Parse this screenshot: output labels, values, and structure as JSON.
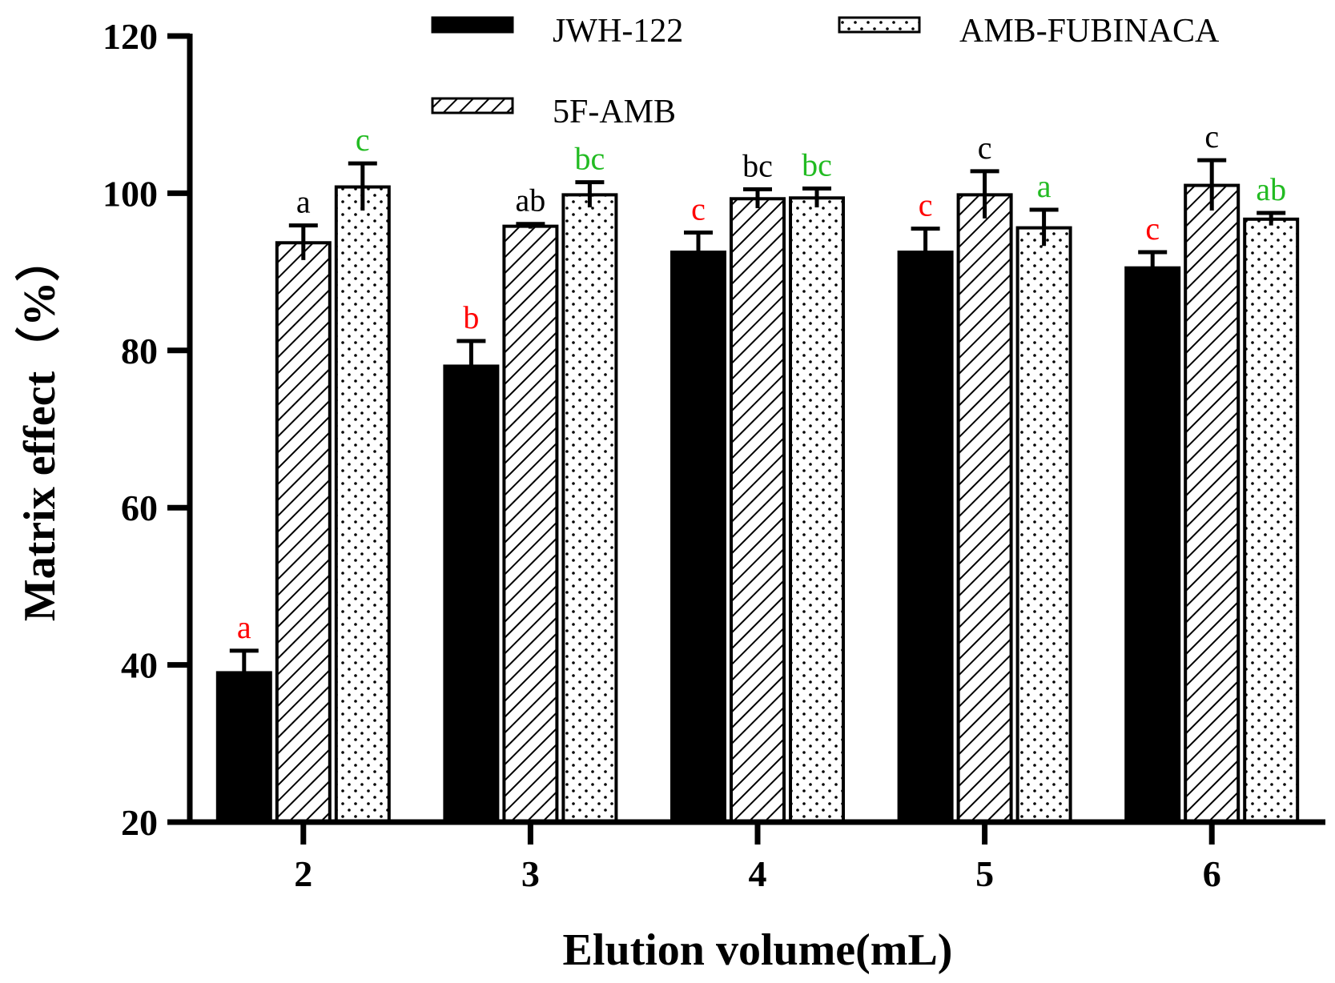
{
  "chart_data": {
    "type": "bar",
    "title": "",
    "xlabel": "Elution volume(mL)",
    "ylabel": "Matrix effect（%）",
    "categories": [
      "2",
      "3",
      "4",
      "5",
      "6"
    ],
    "ylim": [
      20,
      120
    ],
    "yticks": [
      20,
      40,
      60,
      80,
      100,
      120
    ],
    "grid": false,
    "legend_position": "top",
    "series": [
      {
        "name": "JWH-122",
        "pattern": "solid",
        "label_color": "#ff0000",
        "values": [
          39.0,
          78.0,
          92.5,
          92.5,
          90.5
        ],
        "errors": [
          2.8,
          3.2,
          2.5,
          3.0,
          2.0
        ],
        "sig_labels": [
          "a",
          "b",
          "c",
          "c",
          "c"
        ]
      },
      {
        "name": "5F-AMB",
        "pattern": "hatch",
        "label_color": "#000000",
        "values": [
          93.7,
          95.8,
          99.3,
          99.8,
          101.0
        ],
        "errors": [
          2.2,
          0.3,
          1.2,
          3.0,
          3.2
        ],
        "sig_labels": [
          "a",
          "ab",
          "bc",
          "c",
          "c"
        ]
      },
      {
        "name": "AMB-FUBINACA",
        "pattern": "dots",
        "label_color": "#22bb22",
        "values": [
          100.8,
          99.8,
          99.4,
          95.6,
          96.7
        ],
        "errors": [
          3.0,
          1.6,
          1.2,
          2.3,
          0.8
        ],
        "sig_labels": [
          "c",
          "bc",
          "bc",
          "a",
          "ab"
        ]
      }
    ]
  },
  "colors": {
    "axis": "#000000",
    "bar_fill_solid": "#000000",
    "bar_stroke": "#000000",
    "background": "#ffffff"
  }
}
